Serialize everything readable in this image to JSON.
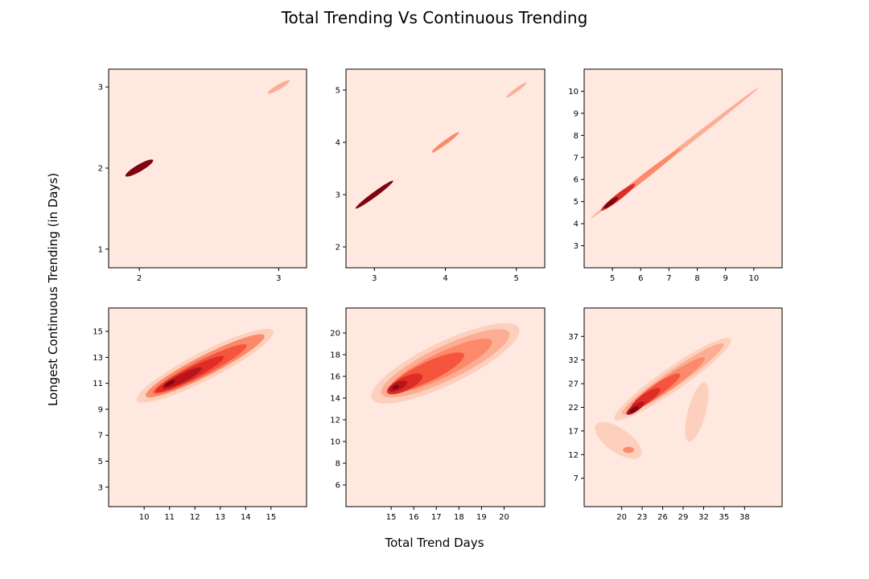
{
  "figure": {
    "title": "Total Trending Vs Continuous Trending",
    "xlabel": "Total Trend Days",
    "ylabel": "Longest Continuous Trending (in Days)"
  },
  "colors": {
    "background": "#fee8df",
    "levels": [
      "#fdd0bd",
      "#fcae94",
      "#fc8a6a",
      "#f6553d",
      "#de2c26",
      "#b8141b",
      "#7d0510"
    ]
  },
  "chart_data": [
    {
      "type": "kde-contour",
      "xlim": [
        1.78,
        3.2
      ],
      "ylim": [
        0.77,
        3.22
      ],
      "xticks": [
        2,
        3
      ],
      "yticks": [
        1,
        2,
        3
      ],
      "blobs": [
        {
          "x": 2.0,
          "y": 2.0,
          "len": 0.28,
          "wid": 0.05,
          "level": 6
        },
        {
          "x": 3.0,
          "y": 3.0,
          "len": 0.22,
          "wid": 0.035,
          "level": 1
        }
      ]
    },
    {
      "type": "kde-contour",
      "xlim": [
        2.6,
        5.4
      ],
      "ylim": [
        1.6,
        5.4
      ],
      "xticks": [
        3,
        4,
        5
      ],
      "yticks": [
        2,
        3,
        4,
        5
      ],
      "blobs": [
        {
          "x": 3.0,
          "y": 3.0,
          "len": 0.75,
          "wid": 0.07,
          "level": 6
        },
        {
          "x": 4.0,
          "y": 4.0,
          "len": 0.55,
          "wid": 0.06,
          "level": 2
        },
        {
          "x": 5.0,
          "y": 5.0,
          "len": 0.4,
          "wid": 0.05,
          "level": 1
        }
      ]
    },
    {
      "type": "kde-contour",
      "xlim": [
        4.0,
        11.0
      ],
      "ylim": [
        2.0,
        11.0
      ],
      "xticks": [
        5,
        6,
        7,
        8,
        9,
        10
      ],
      "yticks": [
        3,
        4,
        5,
        6,
        7,
        8,
        9,
        10
      ],
      "blobs": [
        {
          "x": 7.2,
          "y": 7.2,
          "len": 8.4,
          "wid": 0.16,
          "level": 1
        },
        {
          "x": 6.0,
          "y": 6.0,
          "len": 4.0,
          "wid": 0.2,
          "level": 2
        },
        {
          "x": 5.2,
          "y": 5.2,
          "len": 1.7,
          "wid": 0.22,
          "level": 4
        },
        {
          "x": 4.95,
          "y": 4.95,
          "len": 0.7,
          "wid": 0.16,
          "level": 6
        }
      ]
    },
    {
      "type": "kde-contour",
      "xlim": [
        8.6,
        16.4
      ],
      "ylim": [
        1.5,
        16.8
      ],
      "xticks": [
        10,
        11,
        12,
        13,
        14,
        15
      ],
      "yticks": [
        3,
        5,
        7,
        9,
        11,
        13,
        15
      ],
      "blobs": [
        {
          "x": 12.4,
          "y": 12.35,
          "len": 7.6,
          "wid": 1.1,
          "level": 0
        },
        {
          "x": 12.4,
          "y": 12.35,
          "len": 6.6,
          "wid": 0.8,
          "level": 2
        },
        {
          "x": 12.2,
          "y": 12.1,
          "len": 5.2,
          "wid": 0.6,
          "level": 3
        },
        {
          "x": 11.8,
          "y": 11.7,
          "len": 3.8,
          "wid": 0.45,
          "level": 4
        },
        {
          "x": 11.5,
          "y": 11.4,
          "len": 2.2,
          "wid": 0.32,
          "level": 5
        },
        {
          "x": 11.0,
          "y": 11.0,
          "len": 0.6,
          "wid": 0.15,
          "level": 6
        }
      ]
    },
    {
      "type": "kde-contour",
      "xlim": [
        13.0,
        21.8
      ],
      "ylim": [
        4.0,
        22.3
      ],
      "xticks": [
        15,
        16,
        17,
        18,
        19,
        20
      ],
      "yticks": [
        6,
        8,
        10,
        12,
        14,
        16,
        18,
        20
      ],
      "blobs": [
        {
          "x": 17.4,
          "y": 17.2,
          "len": 9.2,
          "wid": 1.9,
          "level": 0
        },
        {
          "x": 17.4,
          "y": 17.2,
          "len": 8.0,
          "wid": 1.5,
          "level": 1
        },
        {
          "x": 17.2,
          "y": 17.0,
          "len": 6.4,
          "wid": 1.1,
          "level": 2
        },
        {
          "x": 16.6,
          "y": 16.4,
          "len": 4.6,
          "wid": 0.85,
          "level": 3
        },
        {
          "x": 15.6,
          "y": 15.3,
          "len": 2.2,
          "wid": 0.6,
          "level": 4
        },
        {
          "x": 15.3,
          "y": 15.1,
          "len": 1.1,
          "wid": 0.35,
          "level": 5
        },
        {
          "x": 15.2,
          "y": 15.0,
          "len": 0.4,
          "wid": 0.15,
          "level": 6
        }
      ]
    },
    {
      "type": "kde-contour",
      "xlim": [
        14.5,
        43.5
      ],
      "ylim": [
        1.0,
        43.0
      ],
      "xticks": [
        20,
        23,
        26,
        29,
        32,
        35,
        38
      ],
      "yticks": [
        7,
        12,
        17,
        22,
        27,
        32,
        37
      ],
      "blobs": [
        {
          "x": 27.5,
          "y": 28.0,
          "len": 24.0,
          "wid": 3.4,
          "level": 0
        },
        {
          "x": 19.5,
          "y": 15.0,
          "len": 8.0,
          "wid": 3.5,
          "level": 0,
          "angle": -35
        },
        {
          "x": 31.0,
          "y": 21.0,
          "len": 9.0,
          "wid": 2.6,
          "level": 0,
          "angle": 75
        },
        {
          "x": 27.5,
          "y": 28.0,
          "len": 21.0,
          "wid": 2.4,
          "level": 1
        },
        {
          "x": 26.5,
          "y": 26.8,
          "len": 16.0,
          "wid": 2.0,
          "level": 2
        },
        {
          "x": 21.0,
          "y": 13.0,
          "len": 1.6,
          "wid": 0.9,
          "level": 2,
          "angle": 0
        },
        {
          "x": 25.0,
          "y": 25.5,
          "len": 10.0,
          "wid": 1.7,
          "level": 3
        },
        {
          "x": 23.5,
          "y": 23.8,
          "len": 6.0,
          "wid": 1.4,
          "level": 4
        },
        {
          "x": 22.0,
          "y": 21.8,
          "len": 3.6,
          "wid": 1.0,
          "level": 5
        },
        {
          "x": 21.8,
          "y": 21.5,
          "len": 1.8,
          "wid": 0.6,
          "level": 6
        }
      ]
    }
  ]
}
